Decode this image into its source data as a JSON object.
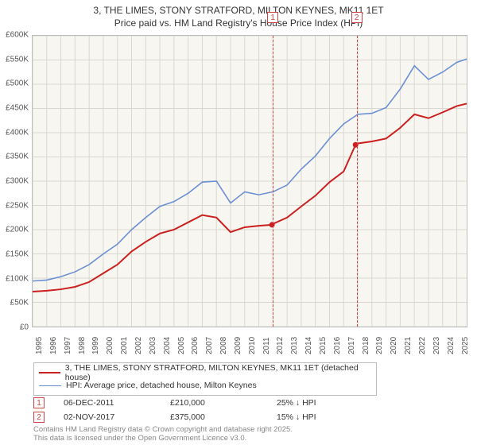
{
  "title_line1": "3, THE LIMES, STONY STRATFORD, MILTON KEYNES, MK11 1ET",
  "title_line2": "Price paid vs. HM Land Registry's House Price Index (HPI)",
  "chart": {
    "type": "line",
    "background_color": "#f7f6f0",
    "grid_color": "#d8d8d0",
    "border_color": "#bdbdbd",
    "x_years": [
      1995,
      1996,
      1997,
      1998,
      1999,
      2000,
      2001,
      2002,
      2003,
      2004,
      2005,
      2006,
      2007,
      2008,
      2009,
      2010,
      2011,
      2012,
      2013,
      2014,
      2015,
      2016,
      2017,
      2018,
      2019,
      2020,
      2021,
      2022,
      2023,
      2024,
      2025
    ],
    "xlim": [
      1995,
      2025.7
    ],
    "ylim": [
      0,
      600
    ],
    "ytick_step": 50,
    "ytick_prefix": "£",
    "ytick_suffix": "K",
    "ytick_zero_label": "£0",
    "series": {
      "red": {
        "label": "3, THE LIMES, STONY STRATFORD, MILTON KEYNES, MK11 1ET (detached house)",
        "color": "#cc1f1f",
        "line_width": 2,
        "data": [
          [
            1995,
            72
          ],
          [
            1996,
            74
          ],
          [
            1997,
            77
          ],
          [
            1998,
            82
          ],
          [
            1999,
            92
          ],
          [
            2000,
            110
          ],
          [
            2001,
            128
          ],
          [
            2002,
            155
          ],
          [
            2003,
            175
          ],
          [
            2004,
            192
          ],
          [
            2005,
            200
          ],
          [
            2006,
            215
          ],
          [
            2007,
            230
          ],
          [
            2008,
            225
          ],
          [
            2009,
            195
          ],
          [
            2010,
            205
          ],
          [
            2011,
            208
          ],
          [
            2011.93,
            210
          ],
          [
            2012,
            212
          ],
          [
            2013,
            225
          ],
          [
            2014,
            248
          ],
          [
            2015,
            270
          ],
          [
            2016,
            298
          ],
          [
            2017,
            320
          ],
          [
            2017.84,
            375
          ],
          [
            2018,
            378
          ],
          [
            2019,
            382
          ],
          [
            2020,
            388
          ],
          [
            2021,
            410
          ],
          [
            2022,
            438
          ],
          [
            2023,
            430
          ],
          [
            2024,
            442
          ],
          [
            2025,
            455
          ],
          [
            2025.7,
            460
          ]
        ]
      },
      "blue": {
        "label": "HPI: Average price, detached house, Milton Keynes",
        "color": "#6b8fd4",
        "line_width": 1.6,
        "data": [
          [
            1995,
            94
          ],
          [
            1996,
            96
          ],
          [
            1997,
            103
          ],
          [
            1998,
            113
          ],
          [
            1999,
            128
          ],
          [
            2000,
            150
          ],
          [
            2001,
            170
          ],
          [
            2002,
            200
          ],
          [
            2003,
            225
          ],
          [
            2004,
            248
          ],
          [
            2005,
            258
          ],
          [
            2006,
            275
          ],
          [
            2007,
            298
          ],
          [
            2008,
            300
          ],
          [
            2009,
            255
          ],
          [
            2010,
            278
          ],
          [
            2011,
            272
          ],
          [
            2012,
            278
          ],
          [
            2013,
            292
          ],
          [
            2014,
            325
          ],
          [
            2015,
            352
          ],
          [
            2016,
            388
          ],
          [
            2017,
            418
          ],
          [
            2018,
            438
          ],
          [
            2019,
            440
          ],
          [
            2020,
            452
          ],
          [
            2021,
            490
          ],
          [
            2022,
            538
          ],
          [
            2023,
            510
          ],
          [
            2024,
            525
          ],
          [
            2025,
            545
          ],
          [
            2025.7,
            552
          ]
        ]
      }
    },
    "sale_points": [
      {
        "x": 2011.93,
        "y": 210
      },
      {
        "x": 2017.84,
        "y": 375
      }
    ],
    "markers": [
      {
        "num": "1",
        "x": 2011.93,
        "color": "#c44"
      },
      {
        "num": "2",
        "x": 2017.84,
        "color": "#c44"
      }
    ]
  },
  "legend": {
    "rows": [
      {
        "style": "red",
        "label_path": "chart.series.red.label"
      },
      {
        "style": "blue",
        "label_path": "chart.series.blue.label"
      }
    ]
  },
  "sales": [
    {
      "num": "1",
      "date": "06-DEC-2011",
      "price": "£210,000",
      "delta": "25% ↓ HPI"
    },
    {
      "num": "2",
      "date": "02-NOV-2017",
      "price": "£375,000",
      "delta": "15% ↓ HPI"
    }
  ],
  "footer_line1": "Contains HM Land Registry data © Crown copyright and database right 2025.",
  "footer_line2": "This data is licensed under the Open Government Licence v3.0."
}
